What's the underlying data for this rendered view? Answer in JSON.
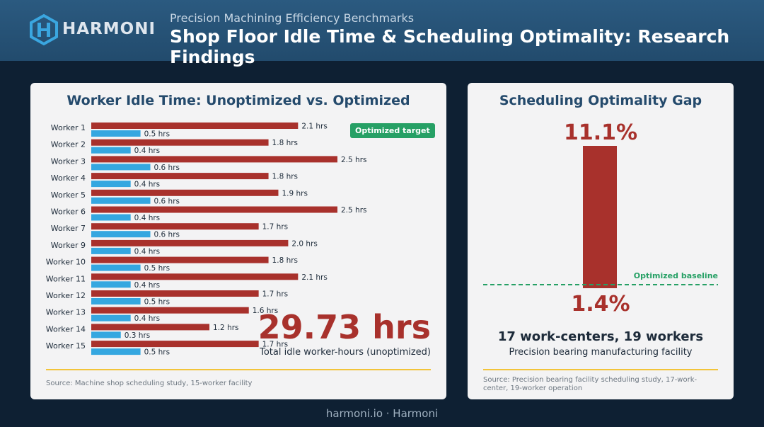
{
  "header": {
    "brand": "HARMONI",
    "supertitle": "Precision Machining Efficiency Benchmarks",
    "title": "Shop Floor Idle Time & Scheduling Optimality: Research Findings"
  },
  "left_card": {
    "title": "Worker Idle Time: Unoptimized vs. Optimized",
    "badge": "Optimized target",
    "total_value": "29.73 hrs",
    "total_caption": "Total idle worker-hours (unoptimized)",
    "source": "Source: Machine shop scheduling study, 15-worker facility"
  },
  "right_card": {
    "title": "Scheduling Optimality Gap",
    "gap_top_label": "11.1%",
    "gap_bottom_label": "1.4%",
    "baseline_label": "Optimized baseline",
    "facts_main": "17 work-centers, 19 workers",
    "facts_sub": "Precision bearing manufacturing facility",
    "source": "Source: Precision bearing facility scheduling study, 17-work-center, 19-worker operation"
  },
  "footer": "harmoni.io · Harmoni",
  "colors": {
    "unoptimized": "#a8312c",
    "optimized": "#35a7e0",
    "baseline": "#26a065",
    "accent_rule": "#f2c43a"
  },
  "chart_data": [
    {
      "type": "bar",
      "orientation": "horizontal",
      "title": "Worker Idle Time: Unoptimized vs. Optimized",
      "categories": [
        "Worker 1",
        "Worker 2",
        "Worker 3",
        "Worker 4",
        "Worker 5",
        "Worker 6",
        "Worker 7",
        "Worker 9",
        "Worker 10",
        "Worker 11",
        "Worker 12",
        "Worker 13",
        "Worker 14",
        "Worker 15"
      ],
      "series": [
        {
          "values": [
            2.1,
            1.8,
            2.5,
            1.8,
            1.9,
            2.5,
            1.7,
            2.0,
            1.8,
            2.1,
            1.7,
            1.6,
            1.2,
            1.7
          ],
          "labels": [
            "2.1 hrs",
            "1.8 hrs",
            "2.5 hrs",
            "1.8 hrs",
            "1.9 hrs",
            "2.5 hrs",
            "1.7 hrs",
            "2.0 hrs",
            "1.8 hrs",
            "2.1 hrs",
            "1.7 hrs",
            "1.6 hrs",
            "1.2 hrs",
            "1.7 hrs"
          ]
        },
        {
          "name": "Optimized target",
          "values": [
            0.5,
            0.4,
            0.6,
            0.4,
            0.6,
            0.4,
            0.6,
            0.4,
            0.5,
            0.4,
            0.5,
            0.4,
            0.3,
            0.5
          ],
          "labels": [
            "0.5 hrs",
            "0.4 hrs",
            "0.6 hrs",
            "0.4 hrs",
            "0.6 hrs",
            "0.4 hrs",
            "0.6 hrs",
            "0.4 hrs",
            "0.5 hrs",
            "0.4 hrs",
            "0.5 hrs",
            "0.4 hrs",
            "0.3 hrs",
            "0.5 hrs"
          ]
        }
      ],
      "xlim": [
        0,
        2.5
      ],
      "grid": false,
      "legend": "top-right"
    },
    {
      "type": "bar",
      "title": "Scheduling Optimality Gap",
      "range_low": 1.4,
      "range_high": 11.1,
      "unit": "%",
      "baseline_value": 1.4,
      "baseline_label": "Optimized baseline"
    }
  ]
}
